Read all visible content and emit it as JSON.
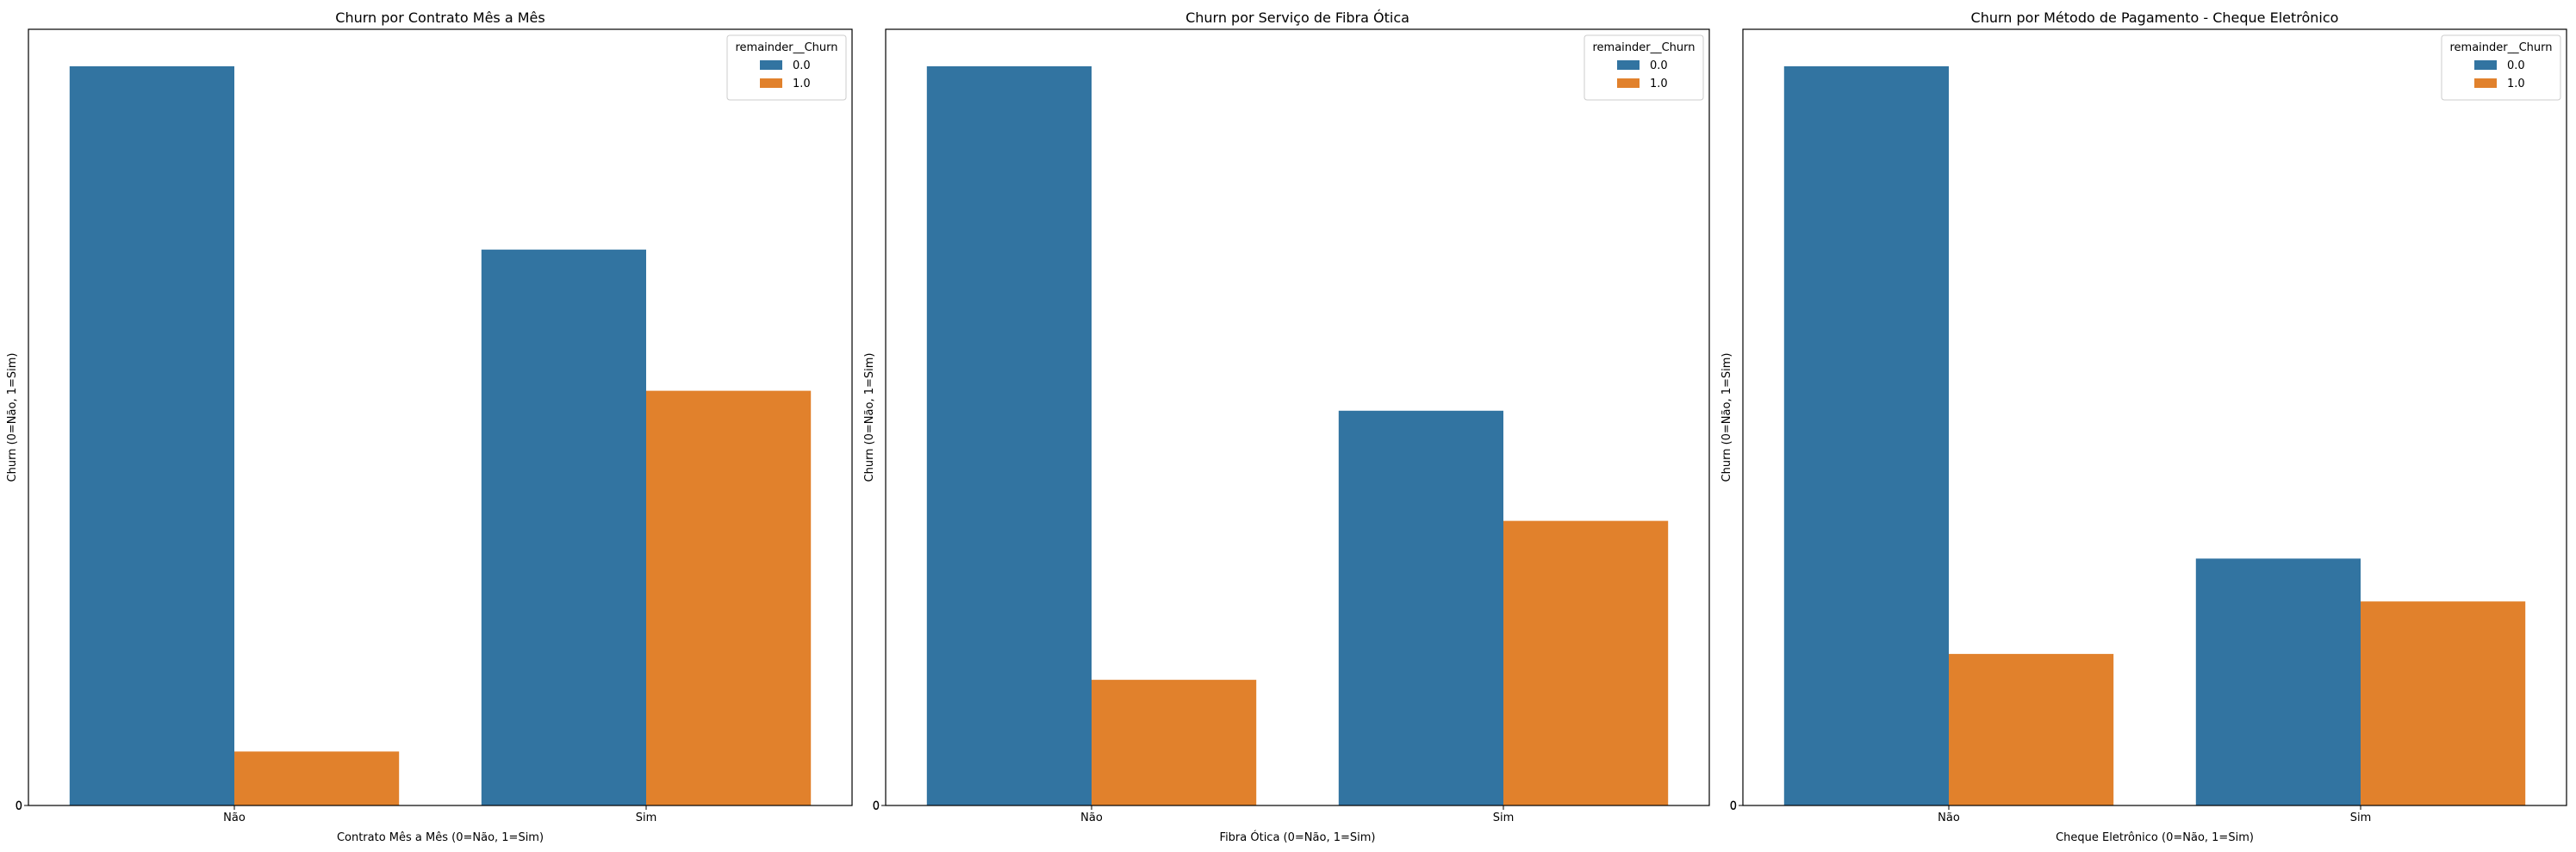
{
  "chart_data": [
    {
      "type": "bar",
      "title": "Churn por Contrato Mês a Mês",
      "xlabel": "Contrato Mês a Mês (0=Não, 1=Sim)",
      "ylabel": "Churn (0=Não, 1=Sim)",
      "categories": [
        "Não",
        "Sim"
      ],
      "ylim": [
        0,
        1.05
      ],
      "yticks": [
        "0",
        "0"
      ],
      "legend": {
        "title": "remainder__Churn",
        "position": "top-right"
      },
      "series": [
        {
          "name": "0.0",
          "color": "#3274a1",
          "values": [
            1.0,
            0.752
          ]
        },
        {
          "name": "1.0",
          "color": "#e1812c",
          "values": [
            0.073,
            0.561
          ]
        }
      ]
    },
    {
      "type": "bar",
      "title": "Churn por Serviço de Fibra Ótica",
      "xlabel": "Fibra Ótica (0=Não, 1=Sim)",
      "ylabel": "Churn (0=Não, 1=Sim)",
      "categories": [
        "Não",
        "Sim"
      ],
      "ylim": [
        0,
        1.05
      ],
      "yticks": [
        "0",
        "0"
      ],
      "legend": {
        "title": "remainder__Churn",
        "position": "top-right"
      },
      "series": [
        {
          "name": "0.0",
          "color": "#3274a1",
          "values": [
            1.0,
            0.534
          ]
        },
        {
          "name": "1.0",
          "color": "#e1812c",
          "values": [
            0.17,
            0.385
          ]
        }
      ]
    },
    {
      "type": "bar",
      "title": "Churn por Método de Pagamento - Cheque Eletrônico",
      "xlabel": "Cheque Eletrônico (0=Não, 1=Sim)",
      "ylabel": "Churn (0=Não, 1=Sim)",
      "categories": [
        "Não",
        "Sim"
      ],
      "ylim": [
        0,
        1.05
      ],
      "yticks": [
        "0",
        "0"
      ],
      "legend": {
        "title": "remainder__Churn",
        "position": "top-right"
      },
      "series": [
        {
          "name": "0.0",
          "color": "#3274a1",
          "values": [
            1.0,
            0.334
          ]
        },
        {
          "name": "1.0",
          "color": "#e1812c",
          "values": [
            0.205,
            0.276
          ]
        }
      ]
    }
  ]
}
